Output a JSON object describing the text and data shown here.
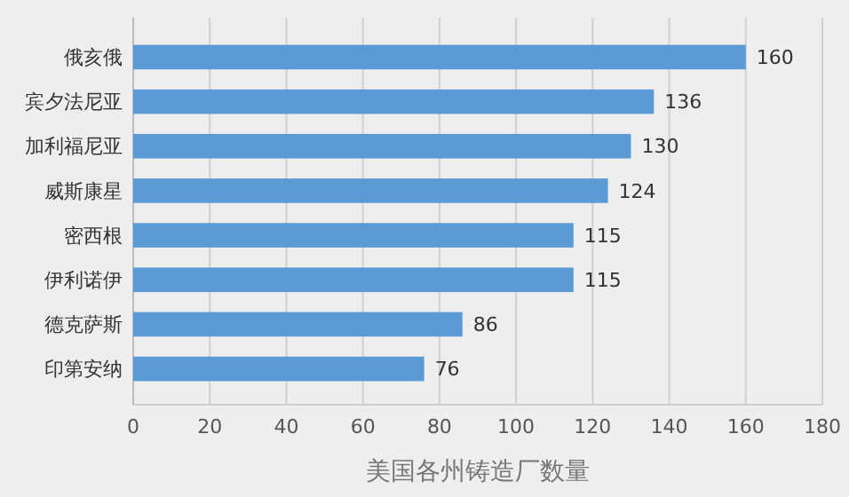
{
  "chart_data": {
    "type": "bar",
    "orientation": "horizontal",
    "xlabel": "美国各州铸造厂数量",
    "categories": [
      "俄亥俄",
      "宾夕法尼亚",
      "加利福尼亚",
      "威斯康星",
      "密西根",
      "伊利诺伊",
      "德克萨斯",
      "印第安纳"
    ],
    "values": [
      160,
      136,
      130,
      124,
      115,
      115,
      86,
      76
    ],
    "color": "#5b9bd5",
    "xlim": [
      0,
      180
    ],
    "xticks": [
      0,
      20,
      40,
      60,
      80,
      100,
      120,
      140,
      160,
      180
    ],
    "grid": "x",
    "data_labels": true
  }
}
